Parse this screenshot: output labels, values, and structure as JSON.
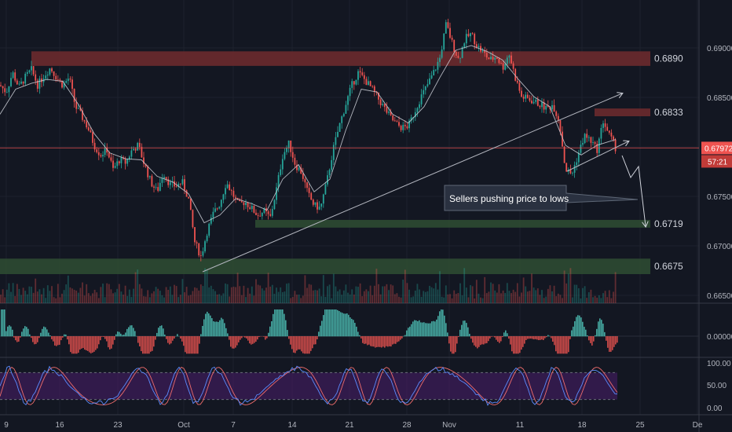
{
  "chart_data": {
    "type": "candlestick",
    "price_ticks": [
      "0.69000",
      "0.68500",
      "0.68000",
      "0.67500",
      "0.67000",
      "0.66500"
    ],
    "price_range": [
      0.6637,
      0.695
    ],
    "x_ticks": [
      "9",
      "16",
      "23",
      "Oct",
      "7",
      "14",
      "21",
      "28",
      "Nov",
      "11",
      "18",
      "25",
      "De"
    ],
    "current_price": {
      "value": "0.67972",
      "countdown": "57:21"
    },
    "colors": {
      "up": "#26a69a",
      "down": "#ef5350",
      "background": "#131722",
      "resistance_zone": "#6b2a2e",
      "support_zone": "#2e4a32",
      "price_line": "#ef5350",
      "ma_line": "#d1d4dc"
    },
    "zones": [
      {
        "label": "0.6890",
        "type": "resistance",
        "low": 0.6882,
        "high": 0.6897
      },
      {
        "label": "0.6833",
        "type": "resistance",
        "low": 0.683,
        "high": 0.6838
      },
      {
        "label": "0.6719",
        "type": "support",
        "low": 0.6715,
        "high": 0.6723
      },
      {
        "label": "0.6675",
        "type": "support",
        "low": 0.6667,
        "high": 0.6683
      }
    ],
    "annotation": "Sellers pushing price to lows",
    "close_path": [
      [
        0,
        0.6862
      ],
      [
        8,
        0.6855
      ],
      [
        16,
        0.6875
      ],
      [
        24,
        0.686
      ],
      [
        32,
        0.687
      ],
      [
        40,
        0.6878
      ],
      [
        48,
        0.6862
      ],
      [
        56,
        0.6872
      ],
      [
        64,
        0.688
      ],
      [
        72,
        0.687
      ],
      [
        80,
        0.6862
      ],
      [
        88,
        0.687
      ],
      [
        96,
        0.684
      ],
      [
        104,
        0.683
      ],
      [
        112,
        0.6818
      ],
      [
        120,
        0.68
      ],
      [
        128,
        0.679
      ],
      [
        136,
        0.6796
      ],
      [
        144,
        0.6775
      ],
      [
        152,
        0.6785
      ],
      [
        160,
        0.6782
      ],
      [
        168,
        0.6795
      ],
      [
        176,
        0.68
      ],
      [
        184,
        0.678
      ],
      [
        192,
        0.6762
      ],
      [
        200,
        0.6752
      ],
      [
        208,
        0.6772
      ],
      [
        216,
        0.676
      ],
      [
        224,
        0.6758
      ],
      [
        232,
        0.6762
      ],
      [
        240,
        0.6745
      ],
      [
        248,
        0.67
      ],
      [
        256,
        0.6685
      ],
      [
        264,
        0.6712
      ],
      [
        272,
        0.673
      ],
      [
        280,
        0.674
      ],
      [
        288,
        0.6762
      ],
      [
        296,
        0.675
      ],
      [
        304,
        0.6738
      ],
      [
        312,
        0.6742
      ],
      [
        320,
        0.6735
      ],
      [
        328,
        0.6728
      ],
      [
        336,
        0.6732
      ],
      [
        344,
        0.6725
      ],
      [
        352,
        0.6755
      ],
      [
        360,
        0.679
      ],
      [
        368,
        0.6802
      ],
      [
        376,
        0.678
      ],
      [
        384,
        0.6772
      ],
      [
        392,
        0.675
      ],
      [
        400,
        0.6738
      ],
      [
        408,
        0.6735
      ],
      [
        416,
        0.6762
      ],
      [
        424,
        0.6795
      ],
      [
        432,
        0.682
      ],
      [
        440,
        0.6842
      ],
      [
        448,
        0.6862
      ],
      [
        456,
        0.6875
      ],
      [
        464,
        0.6868
      ],
      [
        472,
        0.686
      ],
      [
        480,
        0.685
      ],
      [
        488,
        0.684
      ],
      [
        496,
        0.683
      ],
      [
        504,
        0.6822
      ],
      [
        512,
        0.6818
      ],
      [
        520,
        0.682
      ],
      [
        528,
        0.6835
      ],
      [
        536,
        0.685
      ],
      [
        544,
        0.6862
      ],
      [
        552,
        0.6875
      ],
      [
        560,
        0.689
      ],
      [
        568,
        0.6925
      ],
      [
        576,
        0.6905
      ],
      [
        584,
        0.6888
      ],
      [
        592,
        0.691
      ],
      [
        600,
        0.6915
      ],
      [
        608,
        0.6902
      ],
      [
        616,
        0.6895
      ],
      [
        624,
        0.6888
      ],
      [
        632,
        0.6892
      ],
      [
        640,
        0.688
      ],
      [
        648,
        0.6895
      ],
      [
        656,
        0.687
      ],
      [
        664,
        0.685
      ],
      [
        672,
        0.6848
      ],
      [
        680,
        0.6845
      ],
      [
        688,
        0.6842
      ],
      [
        696,
        0.6838
      ],
      [
        704,
        0.6842
      ],
      [
        712,
        0.6825
      ],
      [
        720,
        0.6775
      ],
      [
        728,
        0.677
      ],
      [
        736,
        0.679
      ],
      [
        744,
        0.681
      ],
      [
        752,
        0.6805
      ],
      [
        760,
        0.6795
      ],
      [
        768,
        0.6825
      ],
      [
        776,
        0.681
      ],
      [
        784,
        0.6797
      ]
    ],
    "ma_path": [
      [
        0,
        0.6832
      ],
      [
        20,
        0.6858
      ],
      [
        40,
        0.6864
      ],
      [
        60,
        0.6868
      ],
      [
        80,
        0.6866
      ],
      [
        100,
        0.6842
      ],
      [
        120,
        0.6812
      ],
      [
        140,
        0.6792
      ],
      [
        160,
        0.6786
      ],
      [
        180,
        0.6785
      ],
      [
        200,
        0.6768
      ],
      [
        220,
        0.6762
      ],
      [
        240,
        0.675
      ],
      [
        260,
        0.672
      ],
      [
        280,
        0.6728
      ],
      [
        300,
        0.6745
      ],
      [
        320,
        0.674
      ],
      [
        340,
        0.6733
      ],
      [
        360,
        0.6765
      ],
      [
        380,
        0.678
      ],
      [
        400,
        0.6752
      ],
      [
        420,
        0.6765
      ],
      [
        440,
        0.6815
      ],
      [
        460,
        0.6858
      ],
      [
        480,
        0.6855
      ],
      [
        500,
        0.6832
      ],
      [
        520,
        0.6823
      ],
      [
        540,
        0.684
      ],
      [
        560,
        0.687
      ],
      [
        580,
        0.6898
      ],
      [
        600,
        0.6903
      ],
      [
        620,
        0.6897
      ],
      [
        640,
        0.6888
      ],
      [
        660,
        0.6868
      ],
      [
        680,
        0.685
      ],
      [
        700,
        0.684
      ],
      [
        720,
        0.68
      ],
      [
        740,
        0.679
      ],
      [
        760,
        0.68
      ],
      [
        784,
        0.6806
      ]
    ],
    "macd_ticks": [
      "0.00000"
    ],
    "stoch_ticks": [
      "100.00",
      "50.00",
      "0.00"
    ]
  }
}
